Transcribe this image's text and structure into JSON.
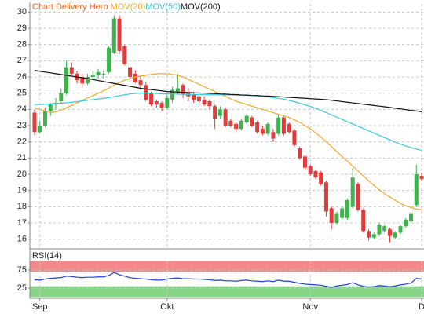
{
  "chart_data": [
    {
      "type": "candlestick",
      "title": "Chart Delivery Hero",
      "title_color": "#e0682a",
      "categories": [
        null,
        "Sep",
        null,
        null,
        null,
        null,
        null,
        null,
        null,
        null,
        null,
        null,
        null,
        null,
        null,
        null,
        null,
        null,
        null,
        null,
        null,
        null,
        null,
        null,
        null,
        "Okt",
        null,
        null,
        null,
        null,
        null,
        null,
        null,
        null,
        null,
        null,
        null,
        null,
        null,
        null,
        null,
        null,
        null,
        null,
        null,
        null,
        null,
        null,
        null,
        null,
        null,
        null,
        "Nov",
        null,
        null,
        null,
        null,
        null,
        null,
        null,
        null,
        null,
        null,
        null,
        null,
        null,
        null,
        null,
        null,
        null,
        null,
        null,
        null,
        "D"
      ],
      "open": [
        23.8,
        22.6,
        23.0,
        23.9,
        24.3,
        24.5,
        25.0,
        26.6,
        26.2,
        26.0,
        25.6,
        26.0,
        26.1,
        26.2,
        26.3,
        27.5,
        29.6,
        27.9,
        26.6,
        26.2,
        25.8,
        25.5,
        25.0,
        24.5,
        24.4,
        24.1,
        24.6,
        25.1,
        25.5,
        25.0,
        24.9,
        24.8,
        24.6,
        24.5,
        24.2,
        23.6,
        24.0,
        23.3,
        23.1,
        22.8,
        23.2,
        23.5,
        23.2,
        22.8,
        22.5,
        22.6,
        22.5,
        23.5,
        23.1,
        22.7,
        21.6,
        21.1,
        20.5,
        20.2,
        20.1,
        19.5,
        17.9,
        17.0,
        17.3,
        17.3,
        18.0,
        19.4,
        17.8,
        16.5,
        16.1,
        16.3,
        16.5,
        16.6,
        16.1,
        16.4,
        16.8,
        17.1,
        18.1,
        19.9
      ],
      "high": [
        24.0,
        23.3,
        24.1,
        24.4,
        24.7,
        25.3,
        27.0,
        26.9,
        26.4,
        26.2,
        26.2,
        26.4,
        26.5,
        26.4,
        27.9,
        29.8,
        29.8,
        28.0,
        26.8,
        26.4,
        26.1,
        25.7,
        25.1,
        24.6,
        24.5,
        24.9,
        25.4,
        26.2,
        25.6,
        25.3,
        25.1,
        24.9,
        24.8,
        24.6,
        24.3,
        24.2,
        24.1,
        23.4,
        23.2,
        23.4,
        23.7,
        23.6,
        23.3,
        23.0,
        23.2,
        22.8,
        23.7,
        23.6,
        23.2,
        22.8,
        21.7,
        21.2,
        20.6,
        20.3,
        20.2,
        19.6,
        18.0,
        17.7,
        18.0,
        18.5,
        20.4,
        19.5,
        17.9,
        16.6,
        16.4,
        17.0,
        16.9,
        16.7,
        16.5,
        16.9,
        17.3,
        17.7,
        20.6,
        20.1
      ],
      "low": [
        22.4,
        22.5,
        22.9,
        23.6,
        24.0,
        24.4,
        24.9,
        26.1,
        25.6,
        25.4,
        25.5,
        25.8,
        25.9,
        25.9,
        26.2,
        27.4,
        27.4,
        26.7,
        25.9,
        25.6,
        25.2,
        24.5,
        24.2,
        24.1,
        23.9,
        24.0,
        24.4,
        24.9,
        24.7,
        24.5,
        24.4,
        24.4,
        24.2,
        24.0,
        22.8,
        23.4,
        22.9,
        22.9,
        22.6,
        22.7,
        23.1,
        22.9,
        22.5,
        22.4,
        22.4,
        22.0,
        22.4,
        22.4,
        22.5,
        21.7,
        20.9,
        20.3,
        19.9,
        19.7,
        19.3,
        17.4,
        16.6,
        16.9,
        17.2,
        17.2,
        17.9,
        17.7,
        16.4,
        15.9,
        16.0,
        16.2,
        16.4,
        15.8,
        16.0,
        16.3,
        16.7,
        17.0,
        18.0,
        19.6
      ],
      "close": [
        22.6,
        23.0,
        23.9,
        24.3,
        24.4,
        25.0,
        26.6,
        26.2,
        25.8,
        25.6,
        26.0,
        26.1,
        26.3,
        26.2,
        27.8,
        29.6,
        27.6,
        26.8,
        26.0,
        25.7,
        25.5,
        24.6,
        24.3,
        24.3,
        24.1,
        24.7,
        25.2,
        25.3,
        24.9,
        24.8,
        24.6,
        24.5,
        24.3,
        24.2,
        23.4,
        24.0,
        23.0,
        23.0,
        22.8,
        23.3,
        23.6,
        23.0,
        22.6,
        22.5,
        23.1,
        22.2,
        23.5,
        22.5,
        22.6,
        21.8,
        21.0,
        20.4,
        20.0,
        19.8,
        19.4,
        17.7,
        17.0,
        17.6,
        17.9,
        18.4,
        19.8,
        17.8,
        16.5,
        16.1,
        16.3,
        16.9,
        16.8,
        16.2,
        16.4,
        16.8,
        17.2,
        17.6,
        20.0,
        19.7
      ],
      "up_color": "#3cb44b",
      "down_color": "#e23b3b",
      "series": [
        {
          "name": "MOV(20)",
          "color": "#f0a830",
          "values": [
            24.1,
            24.0,
            23.9,
            23.8,
            23.85,
            23.95,
            24.1,
            24.25,
            24.4,
            24.55,
            24.7,
            24.85,
            25.0,
            25.15,
            25.3,
            25.5,
            25.65,
            25.8,
            25.9,
            26.0,
            26.05,
            26.1,
            26.15,
            26.2,
            26.2,
            26.2,
            26.15,
            26.1,
            26.0,
            25.85,
            25.7,
            25.55,
            25.4,
            25.25,
            25.1,
            24.95,
            24.8,
            24.65,
            24.5,
            24.4,
            24.3,
            24.2,
            24.1,
            24.0,
            23.9,
            23.8,
            23.7,
            23.6,
            23.5,
            23.35,
            23.2,
            23.0,
            22.8,
            22.55,
            22.3,
            22.0,
            21.7,
            21.4,
            21.1,
            20.8,
            20.5,
            20.2,
            19.9,
            19.6,
            19.3,
            19.05,
            18.8,
            18.6,
            18.4,
            18.2,
            18.05,
            17.95,
            17.85,
            17.8
          ]
        },
        {
          "name": "MOV(50)",
          "color": "#3cc8d8",
          "values": [
            24.3,
            24.3,
            24.32,
            24.34,
            24.36,
            24.38,
            24.4,
            24.44,
            24.48,
            24.52,
            24.56,
            24.6,
            24.64,
            24.68,
            24.72,
            24.78,
            24.84,
            24.9,
            24.95,
            24.98,
            25.0,
            25.0,
            25.0,
            24.98,
            24.96,
            24.95,
            24.95,
            24.94,
            24.93,
            24.92,
            24.92,
            24.91,
            24.9,
            24.9,
            24.9,
            24.9,
            24.9,
            24.89,
            24.88,
            24.87,
            24.86,
            24.85,
            24.83,
            24.8,
            24.77,
            24.73,
            24.68,
            24.62,
            24.55,
            24.47,
            24.38,
            24.28,
            24.18,
            24.06,
            23.94,
            23.8,
            23.66,
            23.52,
            23.38,
            23.24,
            23.1,
            22.96,
            22.82,
            22.68,
            22.54,
            22.4,
            22.26,
            22.12,
            21.98,
            21.86,
            21.74,
            21.64,
            21.55,
            21.48
          ]
        },
        {
          "name": "MOV(200)",
          "color": "#111111",
          "values": [
            26.4,
            26.35,
            26.3,
            26.25,
            26.2,
            26.15,
            26.1,
            26.05,
            26.0,
            25.95,
            25.9,
            25.84,
            25.78,
            25.72,
            25.66,
            25.6,
            25.54,
            25.48,
            25.42,
            25.36,
            25.3,
            25.26,
            25.22,
            25.18,
            25.14,
            25.1,
            25.08,
            25.07,
            25.05,
            25.04,
            25.02,
            25.01,
            25.0,
            24.98,
            24.97,
            24.95,
            24.94,
            24.92,
            24.91,
            24.89,
            24.88,
            24.86,
            24.85,
            24.83,
            24.82,
            24.8,
            24.78,
            24.76,
            24.74,
            24.72,
            24.7,
            24.68,
            24.66,
            24.64,
            24.62,
            24.6,
            24.56,
            24.52,
            24.48,
            24.44,
            24.4,
            24.36,
            24.32,
            24.28,
            24.24,
            24.2,
            24.16,
            24.12,
            24.07,
            24.03,
            23.98,
            23.94,
            23.9,
            23.85
          ]
        }
      ],
      "ylim": [
        15.5,
        30.5
      ],
      "yticks": [
        16,
        17,
        18,
        19,
        20,
        21,
        22,
        23,
        24,
        25,
        26,
        27,
        28,
        29,
        30
      ],
      "grid": true
    },
    {
      "type": "line",
      "title": "RSI(14)",
      "color": "#2040d0",
      "values": [
        48,
        47,
        50,
        52,
        53,
        54,
        58,
        57,
        55,
        54,
        55,
        55,
        56,
        56,
        60,
        68,
        62,
        58,
        54,
        52,
        51,
        50,
        48,
        47,
        47,
        50,
        52,
        53,
        51,
        51,
        50,
        50,
        49,
        48,
        46,
        47,
        45,
        45,
        44,
        46,
        47,
        45,
        44,
        43,
        45,
        43,
        47,
        44,
        44,
        41,
        38,
        36,
        35,
        34,
        33,
        30,
        27,
        31,
        33,
        35,
        40,
        34,
        30,
        28,
        29,
        32,
        31,
        29,
        31,
        34,
        36,
        39,
        52,
        50
      ],
      "ylim": [
        0,
        100
      ],
      "yticks": [
        25,
        75
      ],
      "grid": true,
      "bands": [
        {
          "range": [
            70,
            100
          ],
          "color": "#f4898b"
        },
        {
          "range": [
            0,
            30
          ],
          "color": "#86d486"
        }
      ]
    }
  ]
}
